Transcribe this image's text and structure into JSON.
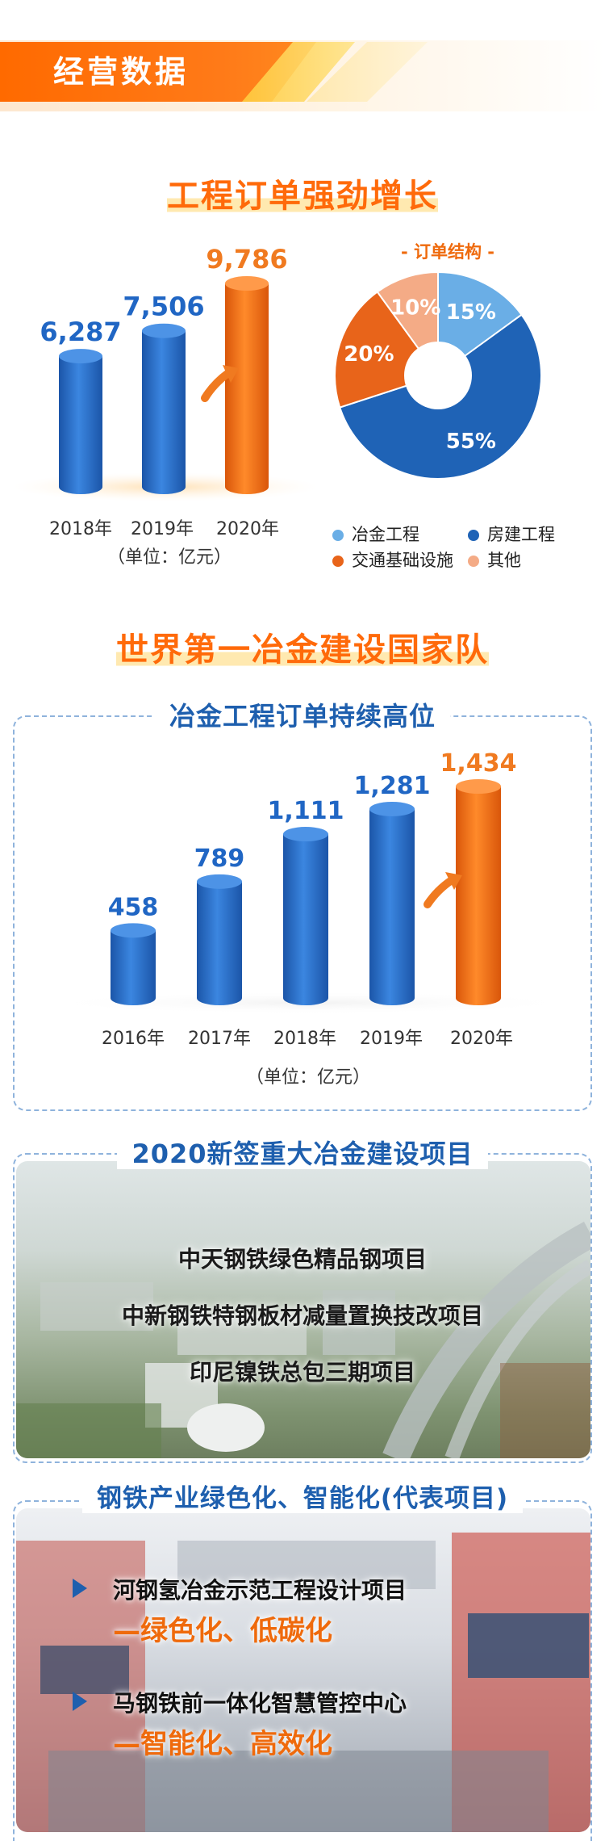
{
  "banner": {
    "title": "经营数据"
  },
  "section1": {
    "title": "工程订单强劲增长",
    "unit": "（单位：亿元）",
    "pie_title": "- 订单结构 -"
  },
  "section2": {
    "title": "世界第一冶金建设国家队",
    "box_title": "冶金工程订单持续高位",
    "unit": "（单位：亿元）"
  },
  "section3": {
    "box_title": "2020新签重大冶金建设项目",
    "projects": [
      "中天钢铁绿色精品钢项目",
      "中新钢铁特钢板材减量置换技改项目",
      "印尼镍铁总包三期项目"
    ]
  },
  "section4": {
    "box_title": "钢铁产业绿色化、智能化(代表项目)",
    "items": [
      {
        "name": "河钢氢冶金示范工程设计项目",
        "tag": "—绿色化、低碳化"
      },
      {
        "name": "马钢铁前一体化智慧管控中心",
        "tag": "—智能化、高效化"
      }
    ]
  },
  "colors": {
    "blue": "#2066c4",
    "orange": "#f07a20",
    "light_blue": "#6aaee6",
    "peach": "#f4ab86"
  },
  "chart_data": [
    {
      "type": "bar",
      "title": "工程订单强劲增长",
      "categories": [
        "2018年",
        "2019年",
        "2020年"
      ],
      "values": [
        6287,
        7506,
        9786
      ],
      "value_labels": [
        "6,287",
        "7,506",
        "9,786"
      ],
      "unit": "（单位：亿元）",
      "highlight_color": [
        "#2066c4",
        "#2066c4",
        "#f07a20"
      ]
    },
    {
      "type": "pie",
      "title": "- 订单结构 -",
      "labels": [
        "冶金工程",
        "房建工程",
        "交通基础设施",
        "其他"
      ],
      "values": [
        15,
        55,
        20,
        10
      ],
      "value_labels": [
        "15%",
        "55%",
        "20%",
        "10%"
      ],
      "colors": [
        "#6aaee6",
        "#1f63b6",
        "#e8641a",
        "#f4ab86"
      ],
      "donut": true
    },
    {
      "type": "bar",
      "title": "冶金工程订单持续高位",
      "categories": [
        "2016年",
        "2017年",
        "2018年",
        "2019年",
        "2020年"
      ],
      "values": [
        458,
        789,
        1111,
        1281,
        1434
      ],
      "value_labels": [
        "458",
        "789",
        "1,111",
        "1,281",
        "1,434"
      ],
      "unit": "（单位：亿元）",
      "highlight_color": [
        "#2066c4",
        "#2066c4",
        "#2066c4",
        "#2066c4",
        "#f07a20"
      ]
    }
  ]
}
